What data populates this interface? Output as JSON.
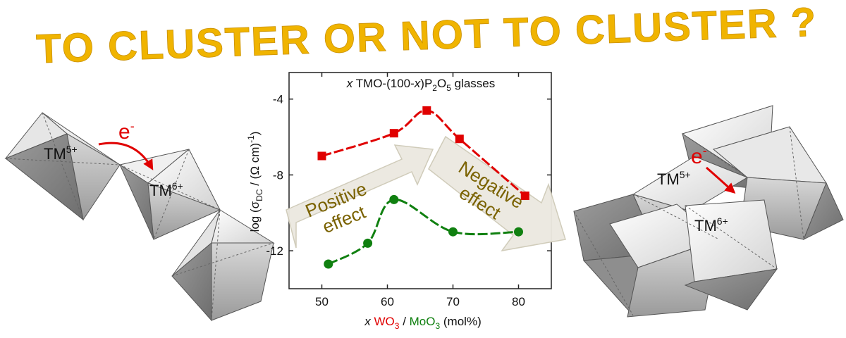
{
  "headline": "TO CLUSTER OR NOT TO CLUSTER ?",
  "colors": {
    "headline": "#f0b400",
    "wo3": "#e00000",
    "moo3": "#108010",
    "arrow_fill": "#ece9e0",
    "arrow_text": "#7a6200",
    "electron_arrow": "#e00000"
  },
  "left_structure": {
    "electron_label": "e",
    "electron_sup": "-",
    "tm5_label": "TM",
    "tm5_sup": "5+",
    "tm6_label": "TM",
    "tm6_sup": "6+"
  },
  "right_structure": {
    "electron_label": "e",
    "electron_sup": "-",
    "tm5_label": "TM",
    "tm5_sup": "5+",
    "tm6_label": "TM",
    "tm6_sup": "6+"
  },
  "arrows": {
    "positive_line1": "Positive",
    "positive_line2": "effect",
    "negative_line1": "Negative",
    "negative_line2": "effect"
  },
  "chart_data": {
    "type": "scatter",
    "title_parts": [
      "x",
      " TMO-(100-",
      "x",
      ")P",
      "2",
      "O",
      "5",
      " glasses"
    ],
    "ylabel_parts": [
      "log (σ",
      "DC",
      " / (Ω cm)",
      "-1",
      ")"
    ],
    "xlabel_parts": [
      "x",
      " ",
      "WO",
      "3",
      " / ",
      "MoO",
      "3",
      " (mol%)"
    ],
    "xlim": [
      45,
      85
    ],
    "ylim": [
      -14,
      -2.6
    ],
    "xticks": [
      50,
      60,
      70,
      80
    ],
    "yticks": [
      -12,
      -8,
      -4
    ],
    "ytick_labels": [
      "-12",
      "-8",
      "-4"
    ],
    "grid": false,
    "series": [
      {
        "name": "WO3",
        "marker": "square",
        "color": "#e00000",
        "points": [
          [
            50,
            -7.0
          ],
          [
            61,
            -5.8
          ],
          [
            66,
            -4.6
          ],
          [
            71,
            -6.1
          ],
          [
            81,
            -9.1
          ]
        ]
      },
      {
        "name": "MoO3",
        "marker": "circle",
        "color": "#108010",
        "points": [
          [
            51,
            -12.7
          ],
          [
            57,
            -11.6
          ],
          [
            61,
            -9.3
          ],
          [
            70,
            -11.0
          ],
          [
            80,
            -11.0
          ]
        ]
      }
    ]
  }
}
